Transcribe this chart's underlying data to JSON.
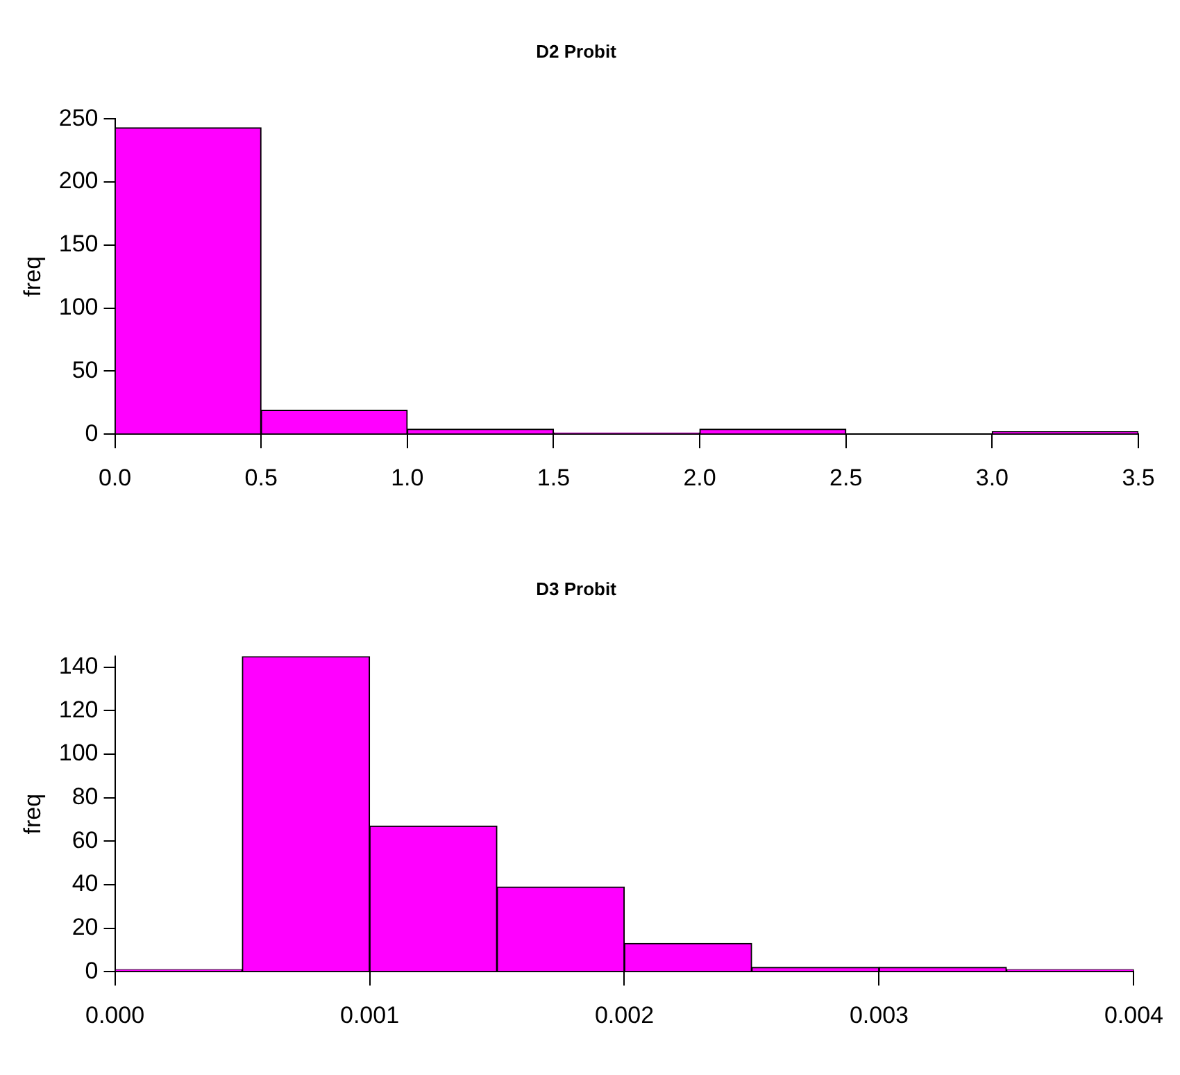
{
  "chart_data": [
    {
      "type": "histogram",
      "title": "D2 Probit",
      "ylabel": "freq",
      "bins": [
        0,
        0.5,
        1,
        1.5,
        2,
        2.5,
        3,
        3.5
      ],
      "values": [
        243,
        19,
        4,
        1,
        4,
        0,
        2
      ],
      "color": "#ff00ff",
      "xlim": [
        0,
        3.5
      ],
      "xticks": [
        {
          "value": 0,
          "label": "0.0"
        },
        {
          "value": 0.5,
          "label": "0.5"
        },
        {
          "value": 1,
          "label": "1.0"
        },
        {
          "value": 1.5,
          "label": "1.5"
        },
        {
          "value": 2,
          "label": "2.0"
        },
        {
          "value": 2.5,
          "label": "2.5"
        },
        {
          "value": 3,
          "label": "3.0"
        },
        {
          "value": 3.5,
          "label": "3.5"
        }
      ],
      "ylim": [
        0,
        250
      ],
      "yticks": [
        0,
        50,
        100,
        150,
        200,
        250
      ],
      "grid": false,
      "legend": false
    },
    {
      "type": "histogram",
      "title": "D3 Probit",
      "ylabel": "freq",
      "bins": [
        0,
        0.0005,
        0.001,
        0.0015,
        0.002,
        0.0025,
        0.003,
        0.0035,
        0.004
      ],
      "values": [
        1,
        145,
        67,
        39,
        13,
        2,
        2,
        1
      ],
      "color": "#ff00ff",
      "xlim": [
        0,
        0.004
      ],
      "xticks": [
        {
          "value": 0,
          "label": "0.000"
        },
        {
          "value": 0.001,
          "label": "0.001"
        },
        {
          "value": 0.002,
          "label": "0.002"
        },
        {
          "value": 0.003,
          "label": "0.003"
        },
        {
          "value": 0.004,
          "label": "0.004"
        }
      ],
      "ylim": [
        0,
        145
      ],
      "yticks": [
        0,
        20,
        40,
        60,
        80,
        100,
        120,
        140
      ],
      "grid": false,
      "legend": false
    }
  ]
}
